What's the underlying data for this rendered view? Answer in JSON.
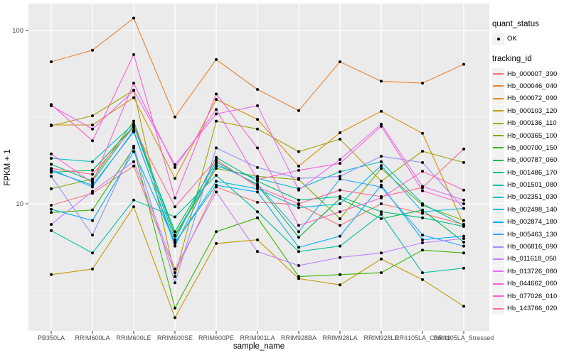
{
  "figure": {
    "x_axis_title": "sample_name",
    "y_axis_title": "FPKM + 1"
  },
  "legend": {
    "quant_status_title": "quant_status",
    "quant_status_items": [
      {
        "label": "OK",
        "symbol": "black-point"
      }
    ],
    "tracking_id_title": "tracking_id"
  },
  "style": {
    "panel_bg": "#EBEBEB",
    "grid_color": "#FFFFFF",
    "tick_color": "#333333",
    "tick_label_color": "#4D4D4D",
    "axis_title_color": "#000000",
    "point_color": "#000000",
    "legend_key_bg": "#F2F2F2"
  },
  "chart_data": {
    "type": "line",
    "title": "",
    "xlabel": "sample_name",
    "ylabel": "FPKM + 1",
    "y_scale": "log10",
    "y_major_ticks": [
      100,
      10
    ],
    "y_tick_labels": [
      "100",
      "10"
    ],
    "y_minor_gridlines": [
      31.62,
      3.162
    ],
    "ylim": [
      2,
      140
    ],
    "grid": true,
    "legend_position": "right",
    "marker": "black point (quant_status = OK)",
    "categories": [
      "PB350LA",
      "RRIM600LA",
      "RRIM600LE",
      "RRIM600SE",
      "RRIM600PE",
      "RRIM901LA",
      "RRIM928BA",
      "RRIM928LA",
      "RRIM928LE",
      "RRII105LA_Control",
      "RRII105LA_Stressed"
    ],
    "series": [
      {
        "name": "Hb_000007_390",
        "color": "#F8766D",
        "values": [
          9.8,
          11.5,
          16.5,
          4.0,
          12.5,
          10.2,
          9.9,
          7.5,
          10.0,
          8.8,
          7.6
        ]
      },
      {
        "name": "Hb_000046_040",
        "color": "#EA8331",
        "values": [
          66,
          77,
          118,
          31.7,
          68,
          45.7,
          34.5,
          66,
          51,
          49.7,
          63.8
        ]
      },
      {
        "name": "Hb_000072_090",
        "color": "#D89000",
        "values": [
          28.5,
          28.5,
          41,
          14.0,
          40,
          30.7,
          16.5,
          25.7,
          34.2,
          25.5,
          7.6
        ]
      },
      {
        "name": "Hb_000103_120",
        "color": "#C09B00",
        "values": [
          3.9,
          4.2,
          9.6,
          2.2,
          5.9,
          6.2,
          3.7,
          3.4,
          4.8,
          3.65,
          2.56
        ]
      },
      {
        "name": "Hb_000136_110",
        "color": "#A3A500",
        "values": [
          28.2,
          32.2,
          45.3,
          3.8,
          30,
          27,
          20,
          23.6,
          13.5,
          20.1,
          17.3
        ]
      },
      {
        "name": "Hb_000365_100",
        "color": "#7CAE00",
        "values": [
          12.2,
          13.9,
          30,
          6.5,
          16,
          14.4,
          13.8,
          8.2,
          16.0,
          9.8,
          8.0
        ]
      },
      {
        "name": "Hb_000700_150",
        "color": "#39B600",
        "values": [
          8.9,
          9.2,
          21,
          2.5,
          6.9,
          8.3,
          3.8,
          3.9,
          4.0,
          5.4,
          5.2
        ]
      },
      {
        "name": "Hb_000787_060",
        "color": "#00BB4E",
        "values": [
          15.2,
          15.6,
          28,
          6.9,
          17.5,
          12.8,
          6.4,
          10.7,
          8.2,
          9.2,
          6.0
        ]
      },
      {
        "name": "Hb_001486_170",
        "color": "#00BF7D",
        "values": [
          16.9,
          13.5,
          28.5,
          6.2,
          18.5,
          13.5,
          10.5,
          11.0,
          9.0,
          8.3,
          7.4
        ]
      },
      {
        "name": "Hb_001501_080",
        "color": "#00C1A3",
        "values": [
          7.0,
          5.2,
          10.5,
          8.4,
          14.6,
          9.0,
          5.3,
          5.7,
          8.7,
          4.0,
          4.25
        ]
      },
      {
        "name": "Hb_002351_030",
        "color": "#00BFC4",
        "values": [
          18.3,
          17.5,
          29,
          6.6,
          16.5,
          14.0,
          12.2,
          15.3,
          17.5,
          10.0,
          7.5
        ]
      },
      {
        "name": "Hb_002498_140",
        "color": "#00BAE0",
        "values": [
          15.5,
          12.8,
          26,
          5.9,
          13.5,
          12.2,
          9.5,
          10.0,
          16.6,
          9.0,
          9.4
        ]
      },
      {
        "name": "Hb_002874_180",
        "color": "#00B0F6",
        "values": [
          9.3,
          8.0,
          20,
          6.0,
          12.8,
          11.7,
          5.6,
          6.5,
          12.8,
          6.2,
          6.5
        ]
      },
      {
        "name": "Hb_005463_130",
        "color": "#35A2FF",
        "values": [
          15.8,
          12.5,
          26.5,
          5.7,
          17,
          13.0,
          6.9,
          13.9,
          12.5,
          6.6,
          5.7
        ]
      },
      {
        "name": "Hb_006816_090",
        "color": "#9590FF",
        "values": [
          14.4,
          6.6,
          21.5,
          3.5,
          21,
          16.2,
          14.0,
          14.4,
          18.8,
          17.3,
          9.4
        ]
      },
      {
        "name": "Hb_011618_050",
        "color": "#C77CFF",
        "values": [
          7.6,
          11.8,
          17.5,
          4.2,
          11.7,
          5.3,
          4.4,
          4.9,
          5.2,
          5.95,
          6.3
        ]
      },
      {
        "name": "Hb_013726_080",
        "color": "#E76BF3",
        "values": [
          36.8,
          27,
          45,
          16.8,
          33,
          36.8,
          12.0,
          18.0,
          28.8,
          12.6,
          10.5
        ]
      },
      {
        "name": "Hb_044662_060",
        "color": "#FA62DB",
        "values": [
          19.4,
          13.2,
          49.7,
          16.2,
          35,
          13.8,
          15.6,
          17.1,
          28.0,
          11.9,
          10.0
        ]
      },
      {
        "name": "Hb_077026_010",
        "color": "#FF61C9",
        "values": [
          37.4,
          23.1,
          72.6,
          10.8,
          43,
          21,
          7.5,
          9.0,
          10.8,
          15.4,
          12.0
        ]
      },
      {
        "name": "Hb_143766_020",
        "color": "#FF6A98",
        "values": [
          16.0,
          14.8,
          27.5,
          9.6,
          18,
          12.5,
          10.0,
          12.0,
          11.0,
          12.4,
          20.7
        ]
      }
    ]
  }
}
